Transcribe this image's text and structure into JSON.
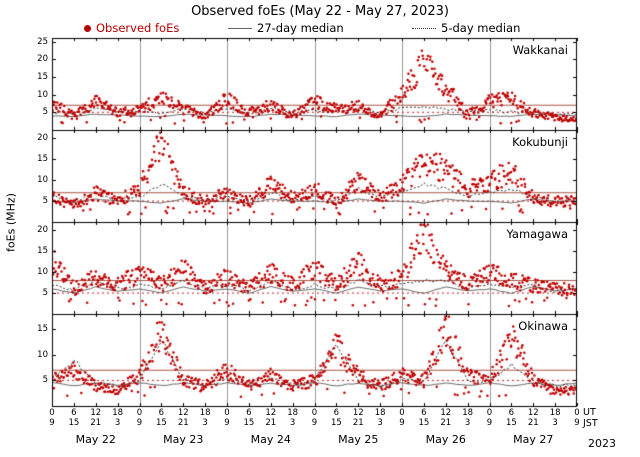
{
  "page": {
    "title_text": "Observed foEs (May 22 - May 27, 2023)",
    "year": "2023"
  },
  "legend": {
    "items": [
      {
        "label": "Observed foEs",
        "marker": "red-dot",
        "color": "#b50000"
      },
      {
        "label": "27-day median",
        "marker": "solid-line",
        "color": "#666666"
      },
      {
        "label": "5-day median",
        "marker": "dotted-line",
        "color": "#333333"
      }
    ]
  },
  "axes": {
    "ylabel": "foEs (MHz)",
    "x_top_unit": "UT",
    "x_bottom_unit": "JST",
    "day_labels": [
      "May 22",
      "May 23",
      "May 24",
      "May 25",
      "May 26",
      "May 27"
    ],
    "ut_tick_labels": [
      "0",
      "6",
      "12",
      "18",
      "0",
      "6",
      "12",
      "18",
      "0",
      "6",
      "12",
      "18",
      "0",
      "6",
      "12",
      "18",
      "0",
      "6",
      "12",
      "18",
      "0",
      "6",
      "12",
      "18",
      "0"
    ],
    "jst_tick_labels": [
      "9",
      "15",
      "21",
      "3",
      "9",
      "15",
      "21",
      "3",
      "9",
      "15",
      "21",
      "3",
      "9",
      "15",
      "21",
      "3",
      "9",
      "15",
      "21",
      "3",
      "9",
      "15",
      "21",
      "3",
      "9"
    ],
    "hours_span": 144,
    "tick_interval_hours": 6,
    "grid_interval_hours": 24
  },
  "chart_data": {
    "type": "scatter",
    "title": "Observed foEs (May 22 - May 27, 2023)",
    "ylabel": "foEs (MHz)",
    "x_knots_hours": [
      0,
      6,
      12,
      18,
      24,
      30,
      36,
      42,
      48,
      54,
      60,
      66,
      72,
      78,
      84,
      90,
      96,
      102,
      108,
      114,
      120,
      126,
      132,
      138,
      144
    ],
    "colors": {
      "observed": "#c00000",
      "median27": "#444444",
      "median5": "#1a1a1a",
      "ref_solid": "#aa5544",
      "ref_dotted": "#cc2222",
      "grid": "#9a9a9a"
    },
    "panels": [
      {
        "station": "Wakkanai",
        "ymax": 26,
        "yticks": [
          5,
          10,
          15,
          20,
          25
        ],
        "ref_solid": 7,
        "ref_dotted": 5,
        "observed_6h": [
          7.5,
          4,
          8,
          5,
          6,
          9,
          6,
          4,
          9,
          5,
          7,
          4,
          8,
          6,
          7,
          4,
          10,
          19,
          12,
          5,
          8,
          9,
          5,
          3.5,
          3
        ],
        "median5_6h": [
          5,
          4.5,
          6,
          5,
          5.5,
          4.5,
          6,
          5,
          6,
          4.5,
          6.5,
          5,
          5.5,
          5,
          6,
          5,
          6,
          6.5,
          6,
          5,
          5.5,
          5,
          5,
          4.5,
          4.5
        ],
        "median27_6h": [
          4,
          3.8,
          4.5,
          4.2,
          4,
          3.8,
          4.5,
          4.2,
          4,
          3.8,
          4.5,
          4.2,
          4,
          3.8,
          4.5,
          4.2,
          4,
          3.8,
          4.5,
          4.2,
          4,
          3.8,
          4.5,
          4.2,
          4
        ]
      },
      {
        "station": "Kokubunji",
        "ymax": 22,
        "yticks": [
          5,
          10,
          15,
          20
        ],
        "ref_solid": 7,
        "ref_dotted": 5,
        "observed_6h": [
          6,
          4,
          7,
          5,
          8,
          19.5,
          7,
          5,
          7,
          5,
          9,
          6,
          8,
          5,
          10,
          6,
          9,
          14,
          13,
          8,
          10,
          12,
          6,
          5,
          5
        ],
        "median5_6h": [
          6,
          5,
          7,
          5,
          6,
          9,
          6,
          5,
          6,
          5,
          7,
          5,
          6,
          5,
          8,
          6,
          7,
          9,
          8,
          6,
          7,
          8,
          6,
          5,
          5
        ],
        "median27_6h": [
          5,
          4.5,
          5.5,
          5,
          5,
          4.5,
          5.5,
          5,
          5,
          4.5,
          5.5,
          5,
          5,
          4.5,
          5.5,
          5,
          5,
          4.5,
          5.5,
          5,
          5,
          4.5,
          5.5,
          5,
          5
        ]
      },
      {
        "station": "Yamagawa",
        "ymax": 22,
        "yticks": [
          5,
          10,
          15,
          20
        ],
        "ref_solid": 8,
        "ref_dotted": 5,
        "observed_6h": [
          13,
          6,
          9,
          7,
          10,
          7,
          11,
          6,
          9,
          6,
          10,
          7,
          11,
          7,
          12,
          7,
          9,
          20,
          11,
          7,
          10,
          8,
          7,
          6,
          6
        ],
        "median5_6h": [
          7,
          5.5,
          8,
          6,
          7,
          6,
          8,
          6,
          7,
          5.5,
          8,
          6,
          7,
          6,
          8,
          6.5,
          7,
          8,
          8,
          6,
          7,
          6.5,
          7,
          5.5,
          6
        ],
        "median27_6h": [
          6,
          5,
          6.5,
          5.5,
          6,
          5,
          6.5,
          5.5,
          6,
          5,
          6.5,
          5.5,
          6,
          5,
          6.5,
          5.5,
          6,
          5,
          6.5,
          5.5,
          6,
          5,
          6.5,
          5.5,
          6
        ]
      },
      {
        "station": "Okinawa",
        "ymax": 18,
        "yticks": [
          5,
          10,
          15
        ],
        "ref_solid": 7,
        "ref_dotted": 5,
        "observed_6h": [
          5,
          7,
          4,
          3,
          6,
          15,
          5,
          4,
          7,
          4,
          6,
          4,
          5,
          12,
          6,
          4,
          6,
          5,
          16,
          6,
          5,
          14,
          5,
          3,
          3
        ],
        "median5_6h": [
          5,
          9,
          4.5,
          4,
          5,
          13,
          5,
          4,
          5,
          4.5,
          6,
          4,
          5,
          12,
          5,
          4,
          5,
          5,
          13,
          5,
          5,
          8,
          4.5,
          4,
          4
        ],
        "median27_6h": [
          4.5,
          4,
          4.5,
          4,
          4.5,
          4,
          4.5,
          4,
          4.5,
          4,
          4.5,
          4,
          4.5,
          4,
          4.5,
          4,
          4.5,
          4,
          4.5,
          4,
          4.5,
          4,
          4.5,
          4,
          4.5
        ]
      }
    ]
  }
}
